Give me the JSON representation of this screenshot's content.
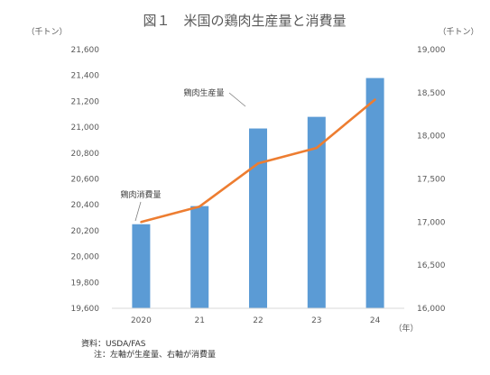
{
  "chart_data": {
    "type": "bar+line",
    "title": "図１　米国の鶏肉生産量と消費量",
    "unit_left": "（千トン）",
    "unit_right": "（千トン）",
    "xlabel": "（年）",
    "categories": [
      "2020",
      "21",
      "22",
      "23",
      "24"
    ],
    "left_axis": {
      "ylim": [
        19600,
        21600
      ],
      "ticks": [
        "19,600",
        "19,800",
        "20,000",
        "20,200",
        "20,400",
        "20,600",
        "20,800",
        "21,000",
        "21,200",
        "21,400",
        "21,600"
      ],
      "tick_values": [
        19600,
        19800,
        20000,
        20200,
        20400,
        20600,
        20800,
        21000,
        21200,
        21400,
        21600
      ]
    },
    "right_axis": {
      "ylim": [
        16000,
        19000
      ],
      "ticks": [
        "16,000",
        "16,500",
        "17,000",
        "17,500",
        "18,000",
        "18,500",
        "19,000"
      ],
      "tick_values": [
        16000,
        16500,
        17000,
        17500,
        18000,
        18500,
        19000
      ]
    },
    "series": [
      {
        "name": "鶏肉生産量",
        "type": "bar",
        "axis": "left",
        "values": [
          20250,
          20390,
          20990,
          21080,
          21380
        ],
        "color": "#5b9bd5"
      },
      {
        "name": "鶏肉消費量",
        "type": "line",
        "axis": "right",
        "values": [
          17000,
          17180,
          17680,
          17860,
          18420
        ],
        "color": "#ed7d31"
      }
    ],
    "grid": false,
    "legend": "none"
  },
  "notes": {
    "source": "資料：USDA/FAS",
    "note": "注：左軸が生産量、右軸が消費量"
  }
}
